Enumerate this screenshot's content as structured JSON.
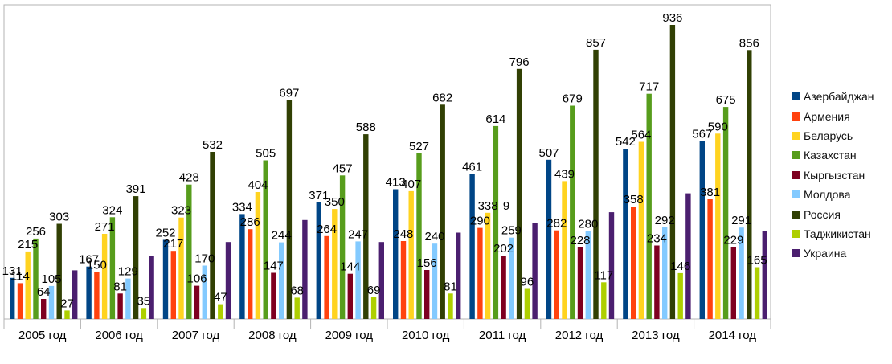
{
  "chart_data": {
    "type": "bar",
    "title": "",
    "xlabel": "",
    "ylabel": "",
    "ylim": [
      0,
      1000
    ],
    "grid": false,
    "legend_position": "right",
    "categories": [
      "2005 год",
      "2006 год",
      "2007 год",
      "2008 год",
      "2009 год",
      "2010 год",
      "2011 год",
      "2012 год",
      "2013 год",
      "2014 год"
    ],
    "series": [
      {
        "name": "Азербайджан",
        "color": "#004586",
        "values": [
          131,
          167,
          252,
          334,
          371,
          413,
          461,
          507,
          542,
          567
        ]
      },
      {
        "name": "Армения",
        "color": "#ff420e",
        "values": [
          114,
          150,
          217,
          286,
          264,
          248,
          290,
          282,
          358,
          381
        ]
      },
      {
        "name": "Беларусь",
        "color": "#ffd320",
        "values": [
          215,
          271,
          323,
          404,
          350,
          407,
          338,
          439,
          564,
          590
        ]
      },
      {
        "name": "Казахстан",
        "color": "#579d1c",
        "values": [
          256,
          324,
          428,
          505,
          457,
          527,
          614,
          679,
          717,
          675
        ]
      },
      {
        "name": "Кыргызстан",
        "color": "#7e0021",
        "values": [
          64,
          81,
          106,
          147,
          144,
          156,
          202,
          228,
          234,
          229
        ]
      },
      {
        "name": "Молдова",
        "color": "#83caff",
        "values": [
          105,
          129,
          170,
          244,
          247,
          240,
          259,
          280,
          292,
          291
        ]
      },
      {
        "name": "Россия",
        "color": "#314004",
        "values": [
          303,
          391,
          532,
          697,
          588,
          682,
          796,
          857,
          936,
          856
        ]
      },
      {
        "name": "Таджикистан",
        "color": "#aecf00",
        "values": [
          27,
          35,
          47,
          68,
          69,
          81,
          96,
          117,
          146,
          165
        ]
      },
      {
        "name": "Украина",
        "color": "#4b1f6f",
        "values": [
          null,
          null,
          null,
          null,
          null,
          null,
          null,
          null,
          null,
          null
        ]
      }
    ],
    "data_labels": {
      "Украина": "9"
    }
  }
}
